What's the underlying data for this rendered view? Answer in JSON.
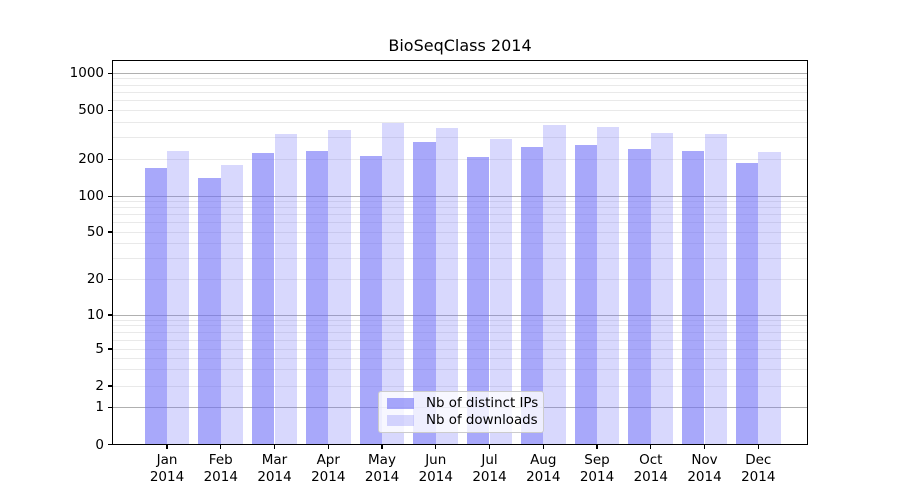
{
  "chart_data": {
    "type": "bar",
    "title": "BioSeqClass 2014",
    "categories": [
      "Jan",
      "Feb",
      "Mar",
      "Apr",
      "May",
      "Jun",
      "Jul",
      "Aug",
      "Sep",
      "Oct",
      "Nov",
      "Dec"
    ],
    "year": "2014",
    "series": [
      {
        "name": "Nb of distinct IPs",
        "values": [
          171,
          140,
          226,
          232,
          214,
          276,
          209,
          250,
          261,
          241,
          233,
          185
        ],
        "alpha": 0.6
      },
      {
        "name": "Nb of downloads",
        "values": [
          233,
          180,
          321,
          346,
          392,
          361,
          290,
          380,
          368,
          329,
          319,
          229
        ],
        "alpha": 0.27
      }
    ],
    "yticks": [
      0,
      1,
      2,
      5,
      10,
      20,
      50,
      100,
      200,
      500,
      1000
    ],
    "ylim": [
      0,
      1300
    ],
    "xlabel": "",
    "ylabel": "",
    "scale": "log-with-zero",
    "grid": true,
    "legend_position": "lower center",
    "colors": {
      "bar_base": "#6E6EF7",
      "bar_dark_fill": "#A8A8FA",
      "bar_light_fill": "#D8D8FA",
      "grid_major": "#B0B0B0",
      "grid_minor": "#E9E9E9",
      "axis": "#000000",
      "background": "#FFFFFF"
    }
  }
}
